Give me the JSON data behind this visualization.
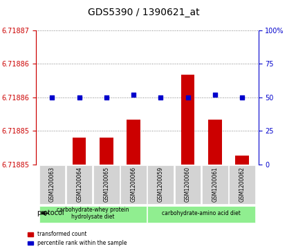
{
  "title": "GDS5390 / 1390621_at",
  "samples": [
    "GSM1200063",
    "GSM1200064",
    "GSM1200065",
    "GSM1200066",
    "GSM1200059",
    "GSM1200060",
    "GSM1200061",
    "GSM1200062"
  ],
  "transformed_counts": [
    6.71885,
    6.718853,
    6.718853,
    6.718855,
    6.718848,
    6.71886,
    6.718855,
    6.718851
  ],
  "percentile_ranks": [
    50,
    50,
    50,
    52,
    50,
    50,
    52,
    50
  ],
  "y_min": 6.71885,
  "y_max": 6.71887,
  "y_ticks": [
    6.71885,
    6.71885,
    6.71885,
    6.71886,
    6.71886
  ],
  "y2_ticks": [
    0,
    25,
    50,
    75,
    100
  ],
  "group1_label": "carbohydrate-whey protein\nhydrolysate diet",
  "group2_label": "carbohydrate-amino acid diet",
  "group1_indices": [
    0,
    1,
    2,
    3
  ],
  "group2_indices": [
    4,
    5,
    6,
    7
  ],
  "bar_color": "#cc0000",
  "dot_color": "#0000cc",
  "group1_color": "#90ee90",
  "group2_color": "#90ee90",
  "sample_bg_color": "#d3d3d3",
  "left_axis_color": "#cc0000",
  "right_axis_color": "#0000cc",
  "protocol_label": "protocol"
}
